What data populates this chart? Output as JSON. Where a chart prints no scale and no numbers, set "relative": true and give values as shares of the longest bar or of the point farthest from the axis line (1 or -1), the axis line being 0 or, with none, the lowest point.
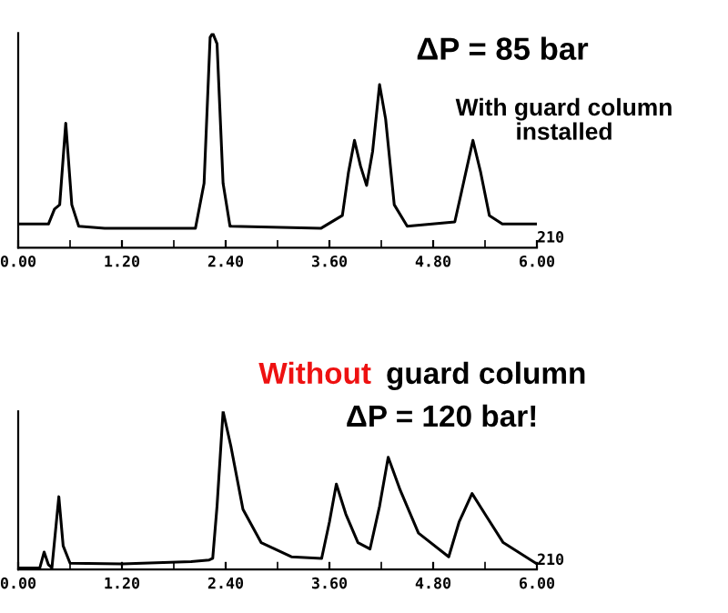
{
  "chart_data": [
    {
      "type": "line",
      "relative": true,
      "annotations": [
        "ΔP = 85 bar",
        "With guard column\ninstalled",
        "210"
      ],
      "xlim": [
        0,
        6
      ],
      "xticks": [
        {
          "value": 0,
          "label": "0.00"
        },
        {
          "value": 1.2,
          "label": "1.20"
        },
        {
          "value": 2.4,
          "label": "2.40"
        },
        {
          "value": 3.6,
          "label": "3.60"
        },
        {
          "value": 4.8,
          "label": "4.80"
        },
        {
          "value": 6,
          "label": "6.00"
        }
      ],
      "tick_labels": "x",
      "grid": false,
      "legend": false,
      "series": [
        {
          "color": "#000000",
          "x": [
            0,
            0.35,
            0.42,
            0.48,
            0.55,
            0.62,
            0.7,
            1.0,
            2.05,
            2.15,
            2.22,
            2.25,
            2.3,
            2.37,
            2.45,
            3.5,
            3.75,
            3.82,
            3.89,
            3.96,
            4.03,
            4.1,
            4.18,
            4.25,
            4.35,
            4.5,
            5.05,
            5.15,
            5.26,
            5.35,
            5.45,
            5.6,
            6.0
          ],
          "values": [
            0.11,
            0.11,
            0.18,
            0.2,
            0.58,
            0.2,
            0.1,
            0.09,
            0.09,
            0.3,
            0.98,
            1,
            0.95,
            0.3,
            0.1,
            0.09,
            0.15,
            0.35,
            0.5,
            0.38,
            0.29,
            0.45,
            0.76,
            0.6,
            0.2,
            0.1,
            0.12,
            0.3,
            0.5,
            0.35,
            0.15,
            0.11,
            0.11
          ]
        }
      ]
    },
    {
      "type": "line",
      "relative": true,
      "annotations": [
        "Without",
        "guard column",
        "ΔP = 120 bar!",
        "210"
      ],
      "xlim": [
        0,
        6
      ],
      "xticks": [
        {
          "value": 0,
          "label": "0.00"
        },
        {
          "value": 1.2,
          "label": "1.20"
        },
        {
          "value": 2.4,
          "label": "2.40"
        },
        {
          "value": 3.6,
          "label": "3.60"
        },
        {
          "value": 4.8,
          "label": "4.80"
        },
        {
          "value": 6,
          "label": "6.00"
        }
      ],
      "tick_labels": "x",
      "grid": false,
      "legend": false,
      "series": [
        {
          "color": "#000000",
          "x": [
            0,
            0.25,
            0.3,
            0.35,
            0.39,
            0.47,
            0.52,
            0.6,
            1.2,
            2.0,
            2.21,
            2.25,
            2.3,
            2.37,
            2.46,
            2.6,
            2.81,
            3.16,
            3.51,
            3.6,
            3.68,
            3.79,
            3.93,
            4.07,
            4.18,
            4.28,
            4.42,
            4.63,
            4.98,
            5.1,
            5.25,
            5.4,
            5.61,
            6.0
          ],
          "values": [
            0.01,
            0.01,
            0.11,
            0.03,
            0.01,
            0.46,
            0.15,
            0.04,
            0.035,
            0.05,
            0.06,
            0.07,
            0.4,
            1,
            0.78,
            0.38,
            0.17,
            0.08,
            0.07,
            0.3,
            0.54,
            0.35,
            0.17,
            0.13,
            0.4,
            0.71,
            0.5,
            0.23,
            0.08,
            0.3,
            0.48,
            0.35,
            0.17,
            0.035
          ]
        }
      ]
    }
  ]
}
